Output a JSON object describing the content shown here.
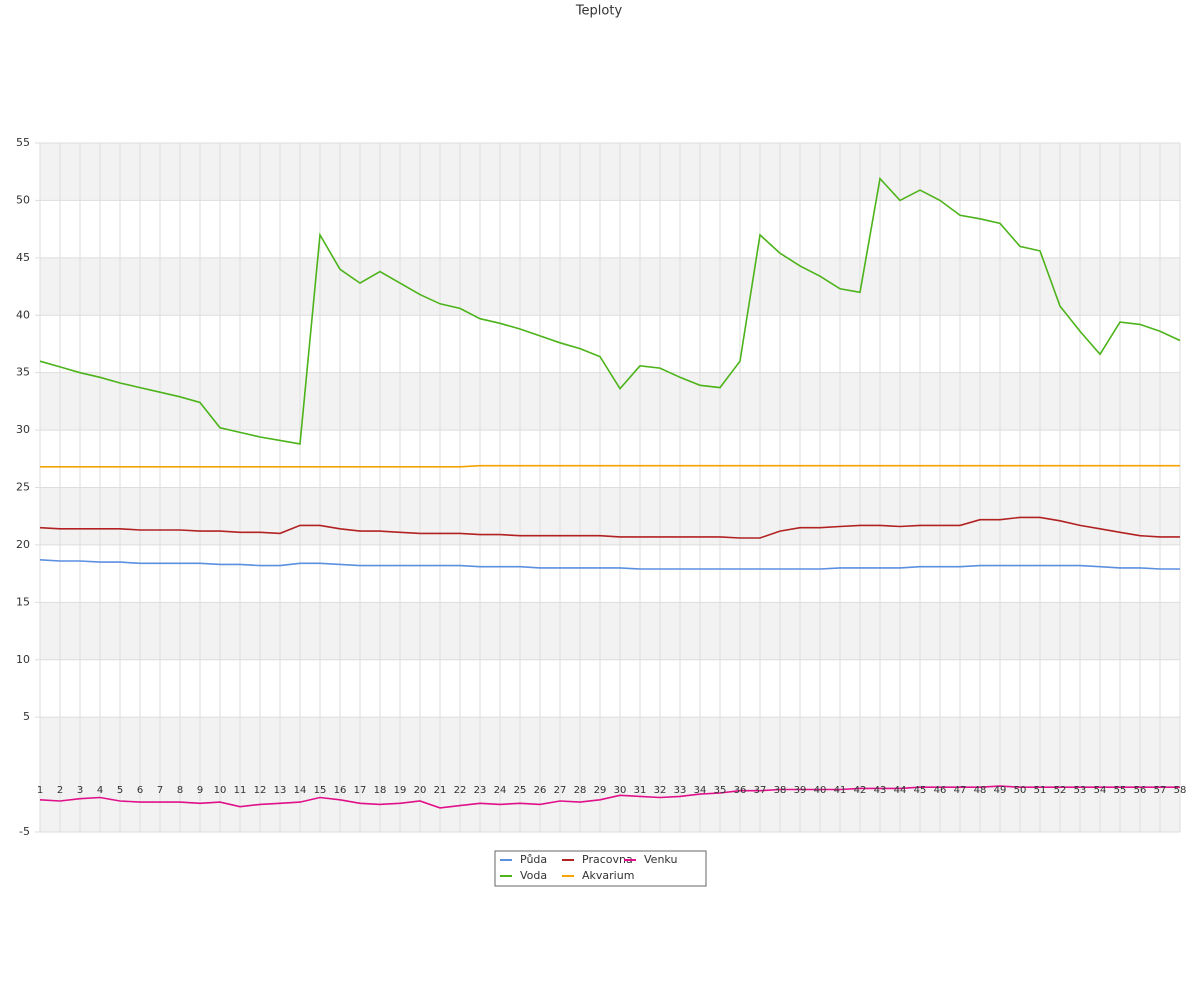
{
  "chart_data": {
    "type": "line",
    "title": "Teploty",
    "categories": [
      "1",
      "2",
      "3",
      "4",
      "5",
      "6",
      "7",
      "8",
      "9",
      "10",
      "11",
      "12",
      "13",
      "14",
      "15",
      "16",
      "17",
      "18",
      "19",
      "20",
      "21",
      "22",
      "23",
      "24",
      "25",
      "26",
      "27",
      "28",
      "29",
      "30",
      "31",
      "32",
      "33",
      "34",
      "35",
      "36",
      "37",
      "38",
      "39",
      "40",
      "41",
      "42",
      "43",
      "44",
      "45",
      "46",
      "47",
      "48",
      "49",
      "50",
      "51",
      "52",
      "53",
      "54",
      "55",
      "56",
      "57",
      "58"
    ],
    "ylim": [
      -5,
      55
    ],
    "yticks": [
      -5,
      5,
      10,
      15,
      20,
      25,
      30,
      35,
      40,
      45,
      50,
      55
    ],
    "grid": true,
    "legend": "bottom",
    "series": [
      {
        "name": "Půda",
        "color": "#5b8fe0",
        "values": [
          18.7,
          18.6,
          18.6,
          18.5,
          18.5,
          18.4,
          18.4,
          18.4,
          18.4,
          18.3,
          18.3,
          18.2,
          18.2,
          18.4,
          18.4,
          18.3,
          18.2,
          18.2,
          18.2,
          18.2,
          18.2,
          18.2,
          18.1,
          18.1,
          18.1,
          18.0,
          18.0,
          18.0,
          18.0,
          18.0,
          17.9,
          17.9,
          17.9,
          17.9,
          17.9,
          17.9,
          17.9,
          17.9,
          17.9,
          17.9,
          18.0,
          18.0,
          18.0,
          18.0,
          18.1,
          18.1,
          18.1,
          18.2,
          18.2,
          18.2,
          18.2,
          18.2,
          18.2,
          18.1,
          18.0,
          18.0,
          17.9,
          17.9
        ]
      },
      {
        "name": "Voda",
        "color": "#4cb31a",
        "values": [
          36,
          35.5,
          35.0,
          34.6,
          34.1,
          33.7,
          33.3,
          32.9,
          32.4,
          30.2,
          29.8,
          29.4,
          29.1,
          28.8,
          47,
          44,
          42.8,
          43.8,
          42.8,
          41.8,
          41,
          40.6,
          39.7,
          39.3,
          38.8,
          38.2,
          37.6,
          37.1,
          36.4,
          33.6,
          35.6,
          35.4,
          34.6,
          33.9,
          33.7,
          36,
          47,
          45.4,
          44.3,
          43.4,
          42.3,
          42,
          51.9,
          50,
          50.9,
          50,
          48.7,
          48.4,
          48,
          46,
          45.6,
          40.8,
          38.6,
          36.6,
          39.4,
          39.2,
          38.6,
          37.8
        ]
      },
      {
        "name": "Pracovna",
        "color": "#b22222",
        "values": [
          21.5,
          21.4,
          21.4,
          21.4,
          21.4,
          21.3,
          21.3,
          21.3,
          21.2,
          21.2,
          21.1,
          21.1,
          21.0,
          21.7,
          21.7,
          21.4,
          21.2,
          21.2,
          21.1,
          21.0,
          21.0,
          21.0,
          20.9,
          20.9,
          20.8,
          20.8,
          20.8,
          20.8,
          20.8,
          20.7,
          20.7,
          20.7,
          20.7,
          20.7,
          20.7,
          20.6,
          20.6,
          21.2,
          21.5,
          21.5,
          21.6,
          21.7,
          21.7,
          21.6,
          21.7,
          21.7,
          21.7,
          22.2,
          22.2,
          22.4,
          22.4,
          22.1,
          21.7,
          21.4,
          21.1,
          20.8,
          20.7,
          20.7
        ]
      },
      {
        "name": "Akvarium",
        "color": "#f5a300",
        "values": [
          26.8,
          26.8,
          26.8,
          26.8,
          26.8,
          26.8,
          26.8,
          26.8,
          26.8,
          26.8,
          26.8,
          26.8,
          26.8,
          26.8,
          26.8,
          26.8,
          26.8,
          26.8,
          26.8,
          26.8,
          26.8,
          26.8,
          26.9,
          26.9,
          26.9,
          26.9,
          26.9,
          26.9,
          26.9,
          26.9,
          26.9,
          26.9,
          26.9,
          26.9,
          26.9,
          26.9,
          26.9,
          26.9,
          26.9,
          26.9,
          26.9,
          26.9,
          26.9,
          26.9,
          26.9,
          26.9,
          26.9,
          26.9,
          26.9,
          26.9,
          26.9,
          26.9,
          26.9,
          26.9,
          26.9,
          26.9,
          26.9,
          26.9
        ]
      },
      {
        "name": "Venku",
        "color": "#e0108a",
        "values": [
          -2.2,
          -2.3,
          -2.1,
          -2.0,
          -2.3,
          -2.4,
          -2.4,
          -2.4,
          -2.5,
          -2.4,
          -2.8,
          -2.6,
          -2.5,
          -2.4,
          -2.0,
          -2.2,
          -2.5,
          -2.6,
          -2.5,
          -2.3,
          -2.9,
          -2.7,
          -2.5,
          -2.6,
          -2.5,
          -2.6,
          -2.3,
          -2.4,
          -2.2,
          -1.8,
          -1.9,
          -2.0,
          -1.9,
          -1.7,
          -1.6,
          -1.4,
          -1.4,
          -1.3,
          -1.3,
          -1.3,
          -1.3,
          -1.2,
          -1.2,
          -1.2,
          -1.1,
          -1.1,
          -1.1,
          -1.1,
          -1.0,
          -1.1,
          -1.1,
          -1.1,
          -1.1,
          -1.1,
          -1.1,
          -1.1,
          -1.1,
          -1.1
        ]
      }
    ]
  }
}
